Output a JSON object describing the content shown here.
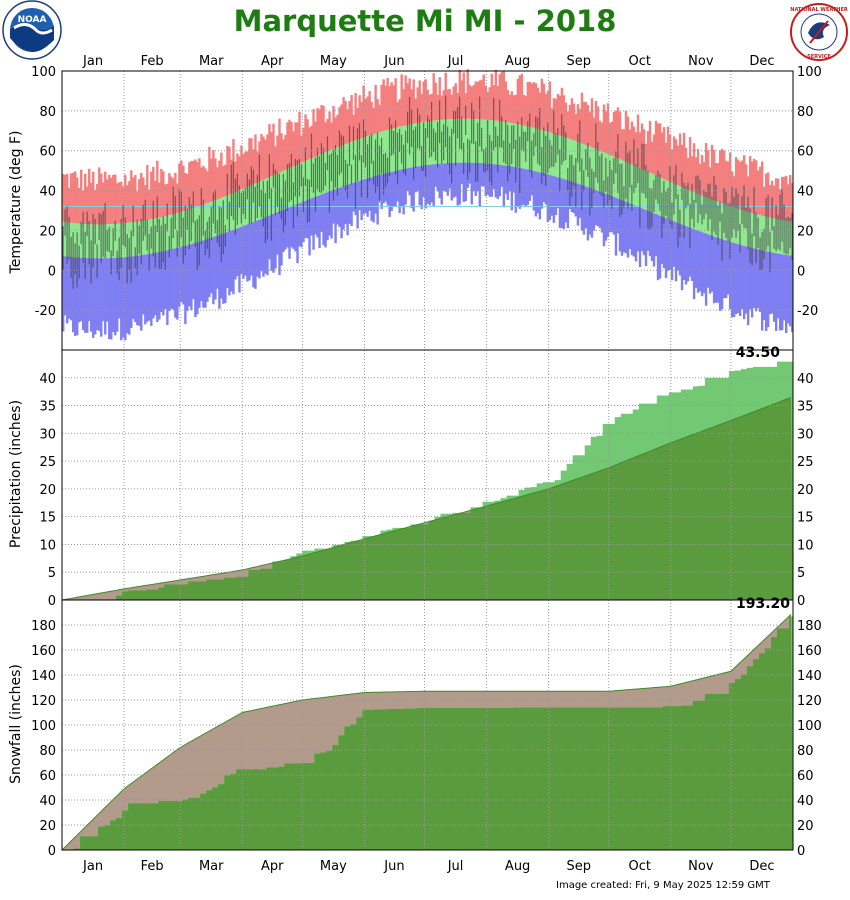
{
  "title": "Marquette Mi MI - 2018",
  "colors": {
    "title": "#1e7d12",
    "record_high": "#f47f7f",
    "normal_band": "#8fe98f",
    "record_low": "#7f7ff2",
    "actual_bar": "#40404a",
    "freeze_line": "#7fd0e8",
    "precip_actual": "#73c874",
    "precip_normal": "#5a9c3d",
    "precip_deficit": "#b39b8c",
    "grid": "#9a9a9a"
  },
  "logos": {
    "left": "NOAA",
    "right": "NATIONAL WEATHER SERVICE"
  },
  "footer": "Image created: Fri, 9 May 2025 12:59 GMT",
  "chart_data": [
    {
      "type": "bar",
      "panel": "temperature",
      "ylabel": "Temperature (deg F)",
      "ylim": [
        -40,
        100
      ],
      "yticks": [
        -20,
        0,
        20,
        40,
        60,
        80,
        100
      ],
      "x_months": [
        "Jan",
        "Feb",
        "Mar",
        "Apr",
        "May",
        "Jun",
        "Jul",
        "Aug",
        "Sep",
        "Oct",
        "Nov",
        "Dec"
      ],
      "normal_high": {
        "jan": 23,
        "jul": 76
      },
      "normal_low": {
        "jan": 6,
        "jul": 54
      },
      "record_high_approx": {
        "jan": 45,
        "jul": 95
      },
      "record_low_approx": {
        "jan": -30,
        "jul": 38
      },
      "freeze_line": 32,
      "grid": true
    },
    {
      "type": "area",
      "panel": "precipitation",
      "ylabel": "Precipitation (inches)",
      "ylim": [
        0,
        45
      ],
      "yticks": [
        0,
        5,
        10,
        15,
        20,
        25,
        30,
        35,
        40
      ],
      "annotation": "43.50",
      "actual_cumulative_month_end": [
        1.6,
        3.6,
        5.0,
        9.2,
        12.0,
        14.6,
        18.2,
        21.8,
        33.0,
        38.0,
        41.5,
        43.5
      ],
      "normal_cumulative_month_end": [
        2.0,
        3.6,
        5.4,
        7.9,
        11.0,
        13.9,
        16.9,
        20.0,
        23.8,
        28.3,
        32.3,
        36.6
      ],
      "grid": true
    },
    {
      "type": "area",
      "panel": "snowfall",
      "ylabel": "Snowfall (inches)",
      "ylim": [
        0,
        200
      ],
      "yticks": [
        0,
        20,
        40,
        60,
        80,
        100,
        120,
        140,
        160,
        180
      ],
      "annotation": "193.20",
      "actual_cumulative_month_end": [
        38,
        42,
        68,
        70,
        114,
        114,
        114,
        114,
        114,
        117,
        135,
        193.2
      ],
      "normal_cumulative_month_end": [
        49,
        82,
        110,
        120,
        126,
        127,
        127,
        127,
        127,
        131,
        143,
        190
      ],
      "grid": true
    }
  ]
}
